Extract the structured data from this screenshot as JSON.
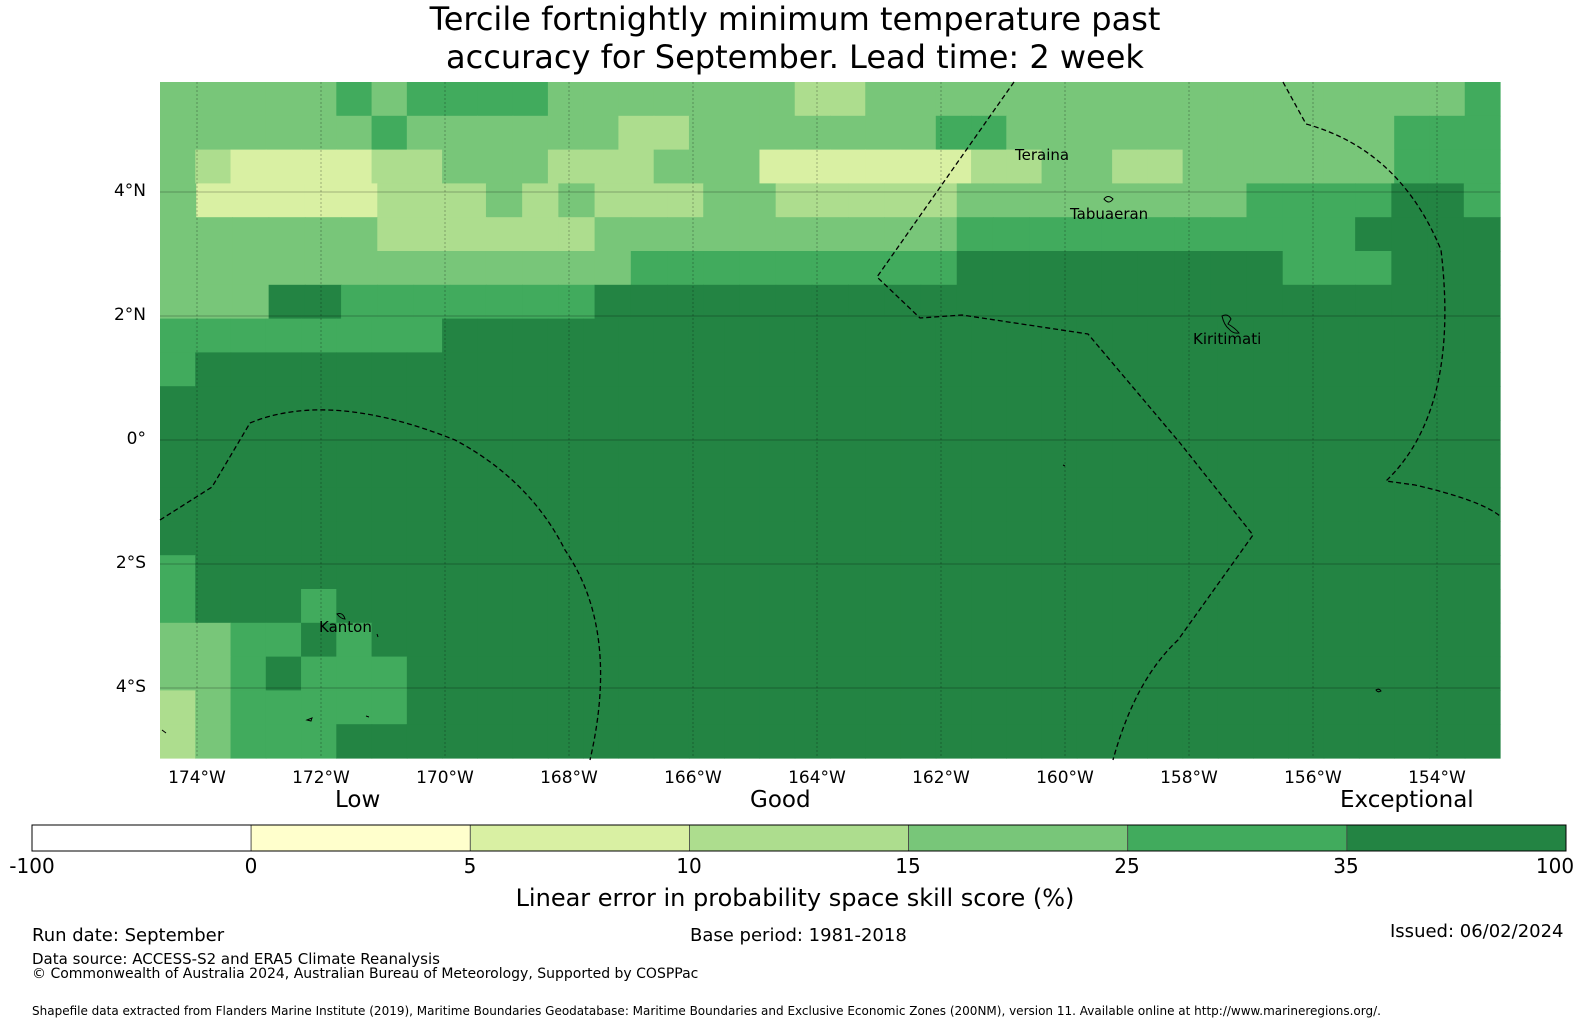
{
  "title": {
    "line1": "Tercile fortnightly minimum temperature past",
    "line2": "accuracy for September. Lead time: 2 week"
  },
  "map": {
    "lat_labels": [
      "4°N",
      "2°N",
      "0°",
      "2°S",
      "4°S"
    ],
    "lon_labels": [
      "174°W",
      "172°W",
      "170°W",
      "168°W",
      "166°W",
      "164°W",
      "162°W",
      "160°W",
      "158°W",
      "156°W",
      "154°W"
    ],
    "places": [
      "Teraina",
      "Tabuaeran",
      "Kiritimati",
      "Kanton"
    ],
    "grid_colors": {
      "c0": "#d9f0a3",
      "c1": "#addd8e",
      "c2": "#78c679",
      "c3": "#41ab5d",
      "c4": "#238443"
    },
    "cells": [
      "22222323333222222211222222222222222223",
      "22222232222221122222223322222222222333",
      "21000011222111222000000112211222222333",
      "2000001112121112211111222222223333443",
      "2222221111112222222222333333333334444",
      "2222222222222333333333444444444333444",
      "2224433333334444444444444444444444444",
      "33333333444444444444444444444444444444",
      "34444444444444444444444444444444444444",
      "44444444444444444444444444444444444444",
      "44444444444444444444444444444444444444",
      "44444444444444444444444444444444444444",
      "44444444444444444444444444444444444444",
      "44444444444444444444444444444444444444",
      "34444444444444444444444444444444444444",
      "34443444444444444444444444444444444444",
      "22334344444444444444444444444444444444",
      "22343334444444444444444444444444444444",
      "12333334444444444444444444444444444444",
      "12333444444444444444444444444444444444"
    ]
  },
  "colorbar": {
    "categories": [
      "Low",
      "Good",
      "Exceptional"
    ],
    "ticks": [
      "-100",
      "0",
      "5",
      "10",
      "15",
      "25",
      "35",
      "100"
    ],
    "colors": [
      "#ffffff",
      "#ffffcc",
      "#d9f0a3",
      "#addd8e",
      "#78c679",
      "#41ab5d",
      "#238443"
    ],
    "label": "Linear error in probability space skill score (%)"
  },
  "footer": {
    "run_date": "Run date: September",
    "base_period": "Base period: 1981-2018",
    "issued": "Issued: 06/02/2024",
    "data_source": "Data source: ACCESS-S2 and ERA5 Climate Reanalysis",
    "copyright": "© Commonwealth of Australia 2024, Australian Bureau of Meteorology, Supported by COSPPac",
    "shapefile": "Shapefile data extracted from Flanders Marine Institute (2019), Maritime Boundaries Geodatabase: Maritime Boundaries and Exclusive Economic Zones (200NM), version 11. Available online at http://www.marineregions.org/."
  }
}
